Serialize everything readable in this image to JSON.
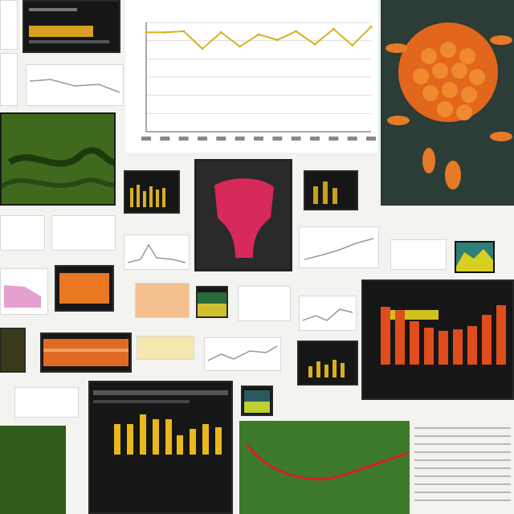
{
  "chart_data": {
    "type": "line",
    "title": "",
    "xlabel": "",
    "ylabel": "",
    "x": [
      1,
      2,
      3,
      4,
      5,
      6,
      7,
      8,
      9,
      10,
      11,
      12,
      13
    ],
    "series": [
      {
        "values": [
          91,
          91,
          92,
          76,
          91,
          78,
          89,
          84,
          92,
          80,
          94,
          79,
          96
        ]
      }
    ],
    "ylim": [
      0,
      100
    ],
    "grid": true,
    "colors": {
      "line": "#d8b020",
      "grid": "#dddddd",
      "axis": "#555555"
    }
  },
  "icons": [
    "flower-icon",
    "bar-chart-icon",
    "line-chart-icon",
    "landscape-icon"
  ]
}
